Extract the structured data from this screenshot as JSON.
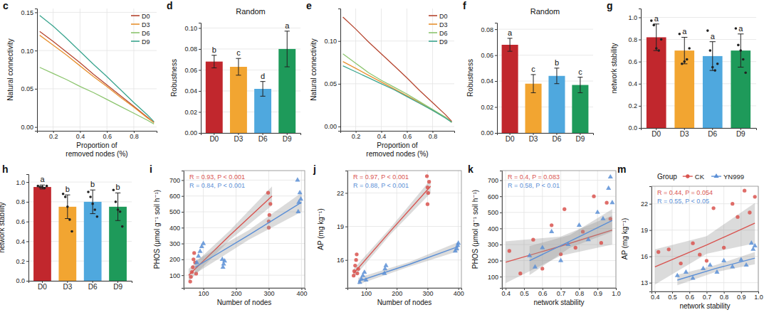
{
  "chart_data": [
    {
      "type": "line",
      "panel": "c",
      "y_label": "Natural connectivity",
      "x_label": [
        "Proportion of",
        "removed nodes (%)"
      ],
      "x": [
        0.1,
        0.2,
        0.3,
        0.4,
        0.5,
        0.6,
        0.7,
        0.8,
        0.9,
        0.95
      ],
      "series": [
        {
          "name": "D0",
          "color": "#b5452f",
          "values": [
            0.125,
            0.112,
            0.098,
            0.084,
            0.069,
            0.055,
            0.041,
            0.027,
            0.013,
            0.006
          ]
        },
        {
          "name": "D3",
          "color": "#e8912f",
          "values": [
            0.12,
            0.107,
            0.094,
            0.08,
            0.066,
            0.053,
            0.039,
            0.026,
            0.012,
            0.006
          ]
        },
        {
          "name": "D6",
          "color": "#8cc56e",
          "values": [
            0.078,
            0.07,
            0.062,
            0.053,
            0.045,
            0.036,
            0.027,
            0.018,
            0.009,
            0.004
          ]
        },
        {
          "name": "D9",
          "color": "#3aa58f",
          "values": [
            0.146,
            0.132,
            0.116,
            0.099,
            0.082,
            0.066,
            0.049,
            0.032,
            0.016,
            0.007
          ]
        }
      ],
      "xlim": [
        0.08,
        0.97
      ],
      "ylim": [
        -0.005,
        0.155
      ],
      "xticks": [
        0.2,
        0.4,
        0.6,
        0.8
      ],
      "yticks": [
        {
          "value": 0,
          "label": "0.00"
        },
        0.05,
        {
          "value": 0.1,
          "label": "0.10"
        },
        0.15
      ],
      "grid": true,
      "legend": "top-right"
    },
    {
      "type": "bar",
      "panel": "d",
      "title": "Random",
      "y_label": "Robustness",
      "categories": [
        "D0",
        "D3",
        "D6",
        "D9"
      ],
      "values": [
        0.068,
        0.063,
        0.042,
        0.08
      ],
      "errors": [
        0.006,
        0.008,
        0.007,
        0.017
      ],
      "significance_letters": [
        "b",
        "c",
        "d",
        "a"
      ],
      "colors": [
        "#c1272d",
        "#f2a531",
        "#4fa8de",
        "#1e9a5a"
      ],
      "ylim": [
        0,
        0.105
      ],
      "yticks": [
        {
          "value": 0,
          "label": "0.00"
        },
        0.02,
        0.04,
        0.06,
        0.08,
        {
          "value": 0.1,
          "label": "0.10"
        }
      ],
      "grid": true
    },
    {
      "type": "line",
      "panel": "e",
      "y_label": "Natural connectivity",
      "x_label": [
        "Proportion of",
        "removed nodes (%)"
      ],
      "x": [
        0.1,
        0.2,
        0.3,
        0.4,
        0.5,
        0.6,
        0.7,
        0.8,
        0.9,
        0.95
      ],
      "series": [
        {
          "name": "D0",
          "color": "#b5452f",
          "values": [
            0.128,
            0.114,
            0.099,
            0.085,
            0.071,
            0.057,
            0.042,
            0.028,
            0.014,
            0.006
          ]
        },
        {
          "name": "D3",
          "color": "#e8912f",
          "values": [
            0.076,
            0.068,
            0.06,
            0.052,
            0.044,
            0.036,
            0.028,
            0.019,
            0.011,
            0.005
          ]
        },
        {
          "name": "D6",
          "color": "#8cc56e",
          "values": [
            0.085,
            0.074,
            0.063,
            0.054,
            0.046,
            0.038,
            0.029,
            0.02,
            0.011,
            0.005
          ]
        },
        {
          "name": "D9",
          "color": "#3aa58f",
          "values": [
            0.071,
            0.064,
            0.057,
            0.05,
            0.043,
            0.035,
            0.027,
            0.019,
            0.01,
            0.005
          ]
        }
      ],
      "xlim": [
        0.08,
        0.97
      ],
      "ylim": [
        -0.005,
        0.138
      ],
      "xticks": [
        0.2,
        0.4,
        0.6,
        0.8
      ],
      "yticks": [
        {
          "value": 0,
          "label": "0.00"
        },
        0.05,
        {
          "value": 0.1,
          "label": "0.10"
        }
      ],
      "grid": true,
      "legend": "top-right"
    },
    {
      "type": "bar",
      "panel": "f",
      "title": "Random",
      "y_label": "Robustness",
      "categories": [
        "D0",
        "D3",
        "D6",
        "D9"
      ],
      "values": [
        0.068,
        0.038,
        0.044,
        0.037
      ],
      "errors": [
        0.005,
        0.007,
        0.006,
        0.006
      ],
      "significance_letters": [
        "a",
        "c",
        "b",
        "c"
      ],
      "colors": [
        "#c1272d",
        "#f2a531",
        "#4fa8de",
        "#1e9a5a"
      ],
      "ylim": [
        0,
        0.085
      ],
      "yticks": [
        {
          "value": 0,
          "label": "0.00"
        },
        0.02,
        0.04,
        0.06,
        0.08
      ],
      "grid": true
    },
    {
      "type": "bar",
      "panel": "g",
      "y_label": "network stability",
      "categories": [
        "D0",
        "D3",
        "D6",
        "D9"
      ],
      "values": [
        0.82,
        0.7,
        0.65,
        0.7
      ],
      "errors": [
        0.12,
        0.12,
        0.13,
        0.15
      ],
      "significance_letters": [
        "a",
        "a",
        "a",
        "a"
      ],
      "points": [
        [
          0.97,
          0.93,
          0.72,
          0.7,
          0.8
        ],
        [
          0.85,
          0.58,
          0.6,
          0.62,
          0.72
        ],
        [
          0.88,
          0.7,
          0.55,
          0.52,
          0.58
        ],
        [
          0.9,
          0.75,
          0.7,
          0.62,
          0.5
        ]
      ],
      "colors": [
        "#c1272d",
        "#f2a531",
        "#4fa8de",
        "#1e9a5a"
      ],
      "ylim": [
        0,
        1.08
      ],
      "yticks": [
        {
          "value": 0,
          "label": "0.0"
        },
        0.2,
        0.4,
        0.6,
        0.8,
        {
          "value": 1,
          "label": "1.0"
        }
      ],
      "grid": true
    },
    {
      "type": "bar",
      "panel": "h",
      "y_label": "network stability",
      "categories": [
        "D0",
        "D3",
        "D6",
        "D9"
      ],
      "values": [
        0.95,
        0.75,
        0.8,
        0.75
      ],
      "errors": [
        0.02,
        0.12,
        0.12,
        0.14
      ],
      "significance_letters": [
        "a",
        "b",
        "b",
        "b"
      ],
      "points": [
        [
          0.96,
          0.95,
          0.95,
          0.94,
          0.96
        ],
        [
          0.88,
          0.85,
          0.75,
          0.62,
          0.5
        ],
        [
          0.9,
          0.85,
          0.78,
          0.72,
          0.65
        ],
        [
          0.92,
          0.8,
          0.72,
          0.7,
          0.55
        ]
      ],
      "colors": [
        "#c1272d",
        "#f2a531",
        "#4fa8de",
        "#1e9a5a"
      ],
      "ylim": [
        0,
        1.08
      ],
      "yticks": [
        {
          "value": 0,
          "label": "0.0"
        },
        0.2,
        0.4,
        0.6,
        0.8,
        {
          "value": 1,
          "label": "1.0"
        }
      ],
      "grid": true
    },
    {
      "type": "scatter",
      "panel": "i",
      "x_label": "Number of nodes",
      "y_label": "PHOS (μmol g⁻¹ soil h⁻¹)",
      "series": [
        {
          "color": "#d9534f",
          "marker": "circle",
          "annotation": "R = 0.93, P < 0.001",
          "x": [
            60,
            62,
            65,
            68,
            70,
            72,
            75,
            78,
            300,
            302,
            305,
            298,
            300
          ],
          "values": [
            60,
            90,
            120,
            150,
            200,
            240,
            180,
            110,
            400,
            480,
            550,
            620,
            440
          ],
          "fit": {
            "x": [
              55,
              180,
              310
            ],
            "y": [
              100,
              350,
              600
            ],
            "lower": [
              60,
              320,
              540
            ],
            "upper": [
              140,
              380,
              660
            ]
          }
        },
        {
          "color": "#5b8fd6",
          "marker": "triangle",
          "annotation": "R = 0.84, P < 0.001",
          "x": [
            80,
            85,
            90,
            95,
            100,
            160,
            162,
            165,
            158,
            390,
            392,
            395,
            388,
            398
          ],
          "values": [
            180,
            220,
            250,
            280,
            300,
            150,
            170,
            190,
            200,
            500,
            560,
            620,
            700,
            580
          ],
          "fit": {
            "x": [
              75,
              240,
              400
            ],
            "y": [
              150,
              355,
              560
            ],
            "lower": [
              110,
              325,
              500
            ],
            "upper": [
              190,
              385,
              620
            ]
          }
        }
      ],
      "xlim": [
        40,
        410
      ],
      "ylim": [
        20,
        760
      ],
      "xticks": [
        100,
        200,
        300,
        400
      ],
      "yticks": [
        100,
        200,
        300,
        400,
        500,
        600,
        700
      ],
      "grid": true
    },
    {
      "type": "scatter",
      "panel": "j",
      "x_label": "Number of nodes",
      "y_label": "AP (mg kg⁻¹)",
      "series": [
        {
          "color": "#d9534f",
          "marker": "circle",
          "annotation": "R = 0.97, P < 0.001",
          "x": [
            60,
            62,
            65,
            68,
            70,
            72,
            75,
            300,
            302,
            305,
            298,
            300
          ],
          "values": [
            14.6,
            15.0,
            15.5,
            16.0,
            16.5,
            14.8,
            15.2,
            21.0,
            22.0,
            23.0,
            23.5,
            22.5
          ],
          "fit": {
            "x": [
              60,
              180,
              310
            ],
            "y": [
              14.8,
              18.6,
              22.6
            ],
            "lower": [
              14.4,
              18.3,
              22.0
            ],
            "upper": [
              15.2,
              18.9,
              23.2
            ]
          }
        },
        {
          "color": "#5b8fd6",
          "marker": "triangle",
          "annotation": "R = 0.88, P < 0.001",
          "x": [
            80,
            85,
            90,
            95,
            100,
            160,
            162,
            165,
            390,
            395,
            398,
            400
          ],
          "values": [
            14.0,
            14.3,
            14.6,
            14.9,
            14.2,
            14.8,
            15.2,
            15.5,
            16.8,
            17.0,
            17.3,
            17.5
          ],
          "fit": {
            "x": [
              75,
              240,
              400
            ],
            "y": [
              14.1,
              15.6,
              17.2
            ],
            "lower": [
              13.8,
              15.4,
              16.8
            ],
            "upper": [
              14.4,
              15.8,
              17.6
            ]
          }
        }
      ],
      "xlim": [
        40,
        410
      ],
      "ylim": [
        13.5,
        24
      ],
      "xticks": [
        100,
        200,
        300,
        400
      ],
      "yticks": [
        16,
        19,
        22
      ],
      "grid": true
    },
    {
      "type": "scatter",
      "panel": "k",
      "x_label": "network stability",
      "y_label": "PHOS (μmol g⁻¹ soil h⁻¹)",
      "series": [
        {
          "color": "#d9534f",
          "marker": "circle",
          "annotation": "R = 0.4, P = 0.083",
          "x": [
            0.42,
            0.48,
            0.55,
            0.6,
            0.65,
            0.7,
            0.72,
            0.78,
            0.82,
            0.88,
            0.92,
            0.95,
            0.97
          ],
          "values": [
            260,
            120,
            330,
            150,
            420,
            240,
            520,
            280,
            380,
            600,
            310,
            560,
            460
          ],
          "fit": {
            "x": [
              0.4,
              0.7,
              0.98
            ],
            "y": [
              190,
              290,
              390
            ],
            "lower": [
              60,
              230,
              300
            ],
            "upper": [
              320,
              350,
              480
            ]
          }
        },
        {
          "color": "#5b8fd6",
          "marker": "triangle",
          "annotation": "R = 0.58, P < 0.01",
          "x": [
            0.53,
            0.56,
            0.6,
            0.65,
            0.7,
            0.74,
            0.8,
            0.85,
            0.9,
            0.93,
            0.96,
            0.97,
            0.98
          ],
          "values": [
            230,
            160,
            280,
            380,
            200,
            300,
            420,
            330,
            500,
            460,
            650,
            720,
            560
          ],
          "fit": {
            "x": [
              0.53,
              0.75,
              0.98
            ],
            "y": [
              200,
              320,
              450
            ],
            "lower": [
              110,
              280,
              380
            ],
            "upper": [
              290,
              360,
              520
            ]
          }
        }
      ],
      "xlim": [
        0.38,
        1.0
      ],
      "ylim": [
        30,
        760
      ],
      "xticks": [
        0.4,
        0.5,
        0.6,
        0.7,
        0.8,
        0.9,
        {
          "value": 1,
          "label": "1.0"
        }
      ],
      "yticks": [
        100,
        200,
        300,
        400,
        500,
        600,
        700
      ],
      "grid": true
    },
    {
      "type": "scatter",
      "panel": "m",
      "x_label": "network stability",
      "y_label": "AP (mg kg⁻¹)",
      "legend_title": "Group",
      "series": [
        {
          "name": "CK",
          "color": "#d9534f",
          "marker": "circle",
          "annotation": "R = 0.44, P = 0.054",
          "x": [
            0.42,
            0.48,
            0.55,
            0.62,
            0.66,
            0.7,
            0.74,
            0.8,
            0.85,
            0.88,
            0.92,
            0.95,
            0.98
          ],
          "values": [
            16.5,
            16.8,
            15.2,
            17.5,
            16.2,
            15.5,
            21.5,
            17.0,
            22.0,
            20.5,
            23.5,
            21.0,
            22.8
          ],
          "fit": {
            "x": [
              0.4,
              0.7,
              0.98
            ],
            "y": [
              14.8,
              17.3,
              19.8
            ],
            "lower": [
              12.8,
              16.3,
              17.5
            ],
            "upper": [
              16.8,
              18.3,
              22.1
            ]
          }
        },
        {
          "name": "YN999",
          "color": "#5b8fd6",
          "marker": "triangle",
          "annotation": "R = 0.55, P < 0.05",
          "x": [
            0.53,
            0.58,
            0.62,
            0.68,
            0.72,
            0.76,
            0.8,
            0.85,
            0.9,
            0.93,
            0.96,
            0.97,
            0.98
          ],
          "values": [
            13.8,
            14.2,
            13.5,
            14.6,
            15.0,
            14.2,
            15.5,
            14.8,
            15.6,
            15.0,
            17.5,
            16.8,
            17.2
          ],
          "fit": {
            "x": [
              0.53,
              0.75,
              0.98
            ],
            "y": [
              13.3,
              14.6,
              15.8
            ],
            "lower": [
              12.7,
              14.2,
              15.1
            ],
            "upper": [
              13.9,
              15.0,
              16.5
            ]
          }
        }
      ],
      "xlim": [
        0.38,
        1.0
      ],
      "ylim": [
        12,
        24
      ],
      "xticks": [
        0.4,
        0.5,
        0.6,
        0.7,
        0.8,
        0.9,
        {
          "value": 1,
          "label": "1.0"
        }
      ],
      "yticks": [
        13,
        16,
        19,
        22
      ],
      "grid": true,
      "legend": "top"
    }
  ]
}
